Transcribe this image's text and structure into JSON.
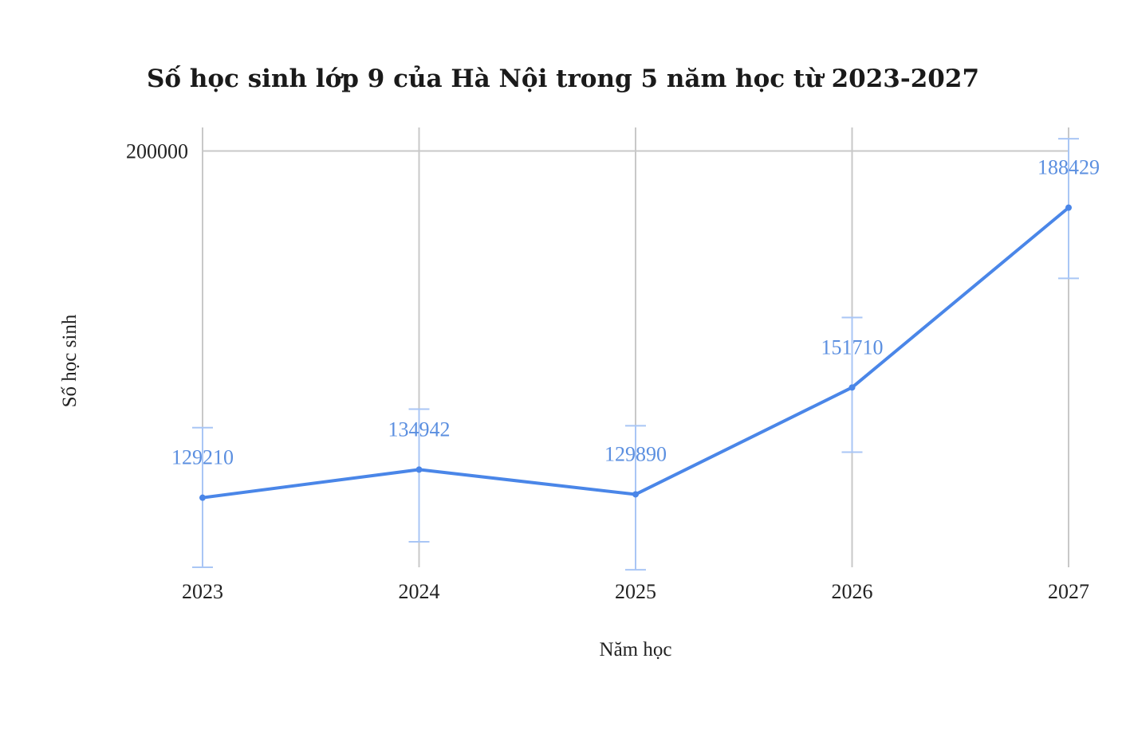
{
  "chart_data": {
    "type": "line",
    "title": "Số học sinh lớp 9 của Hà Nội trong 5 năm học từ 2023-2027",
    "xlabel": "Năm học",
    "ylabel": "Số học sinh",
    "categories": [
      "2023",
      "2024",
      "2025",
      "2026",
      "2027"
    ],
    "series": [
      {
        "name": "Số học sinh",
        "values": [
          129210,
          134942,
          129890,
          151710,
          188429
        ],
        "data_labels": [
          "129210",
          "134942",
          "129890",
          "151710",
          "188429"
        ],
        "error_bars": [
          [
            115000,
            143500
          ],
          [
            120200,
            147300
          ],
          [
            114500,
            143900
          ],
          [
            138500,
            166000
          ],
          [
            174000,
            202500
          ]
        ]
      }
    ],
    "y_ticks": [
      200000
    ],
    "y_tick_labels": [
      "200000"
    ],
    "ylim": [
      115000,
      204800
    ],
    "grid": true,
    "legend": "none",
    "colors": {
      "line": "#4a86e8",
      "error_bar": "#a9c6f5",
      "data_label": "#5b8fe0",
      "grid": "#c8c8c8"
    }
  }
}
